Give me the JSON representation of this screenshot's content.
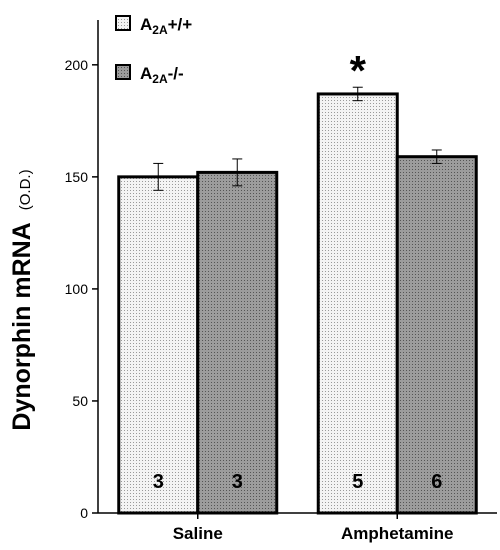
{
  "chart_data": {
    "type": "bar",
    "ylabel": "Dynorphin mRNA",
    "ylabel_unit": "(O.D.)",
    "ylim": [
      0,
      220
    ],
    "yticks": [
      0,
      50,
      100,
      150,
      200
    ],
    "grid": false,
    "legend_position": "top-left",
    "categories": [
      "Saline",
      "Amphetamine"
    ],
    "series": [
      {
        "name_main": "A",
        "name_sub": "2A",
        "name_suffix": "+/+",
        "values": [
          150,
          187
        ],
        "errors": [
          6,
          3
        ],
        "n": [
          "3",
          "5"
        ],
        "color": "#efefef"
      },
      {
        "name_main": "A",
        "name_sub": "2A",
        "name_suffix": "-/-",
        "values": [
          152,
          159
        ],
        "errors": [
          6,
          3
        ],
        "n": [
          "3",
          "6"
        ],
        "color": "#8c8c8c"
      }
    ],
    "annotations": [
      {
        "text": "*",
        "category": 1,
        "series": 0
      }
    ]
  }
}
